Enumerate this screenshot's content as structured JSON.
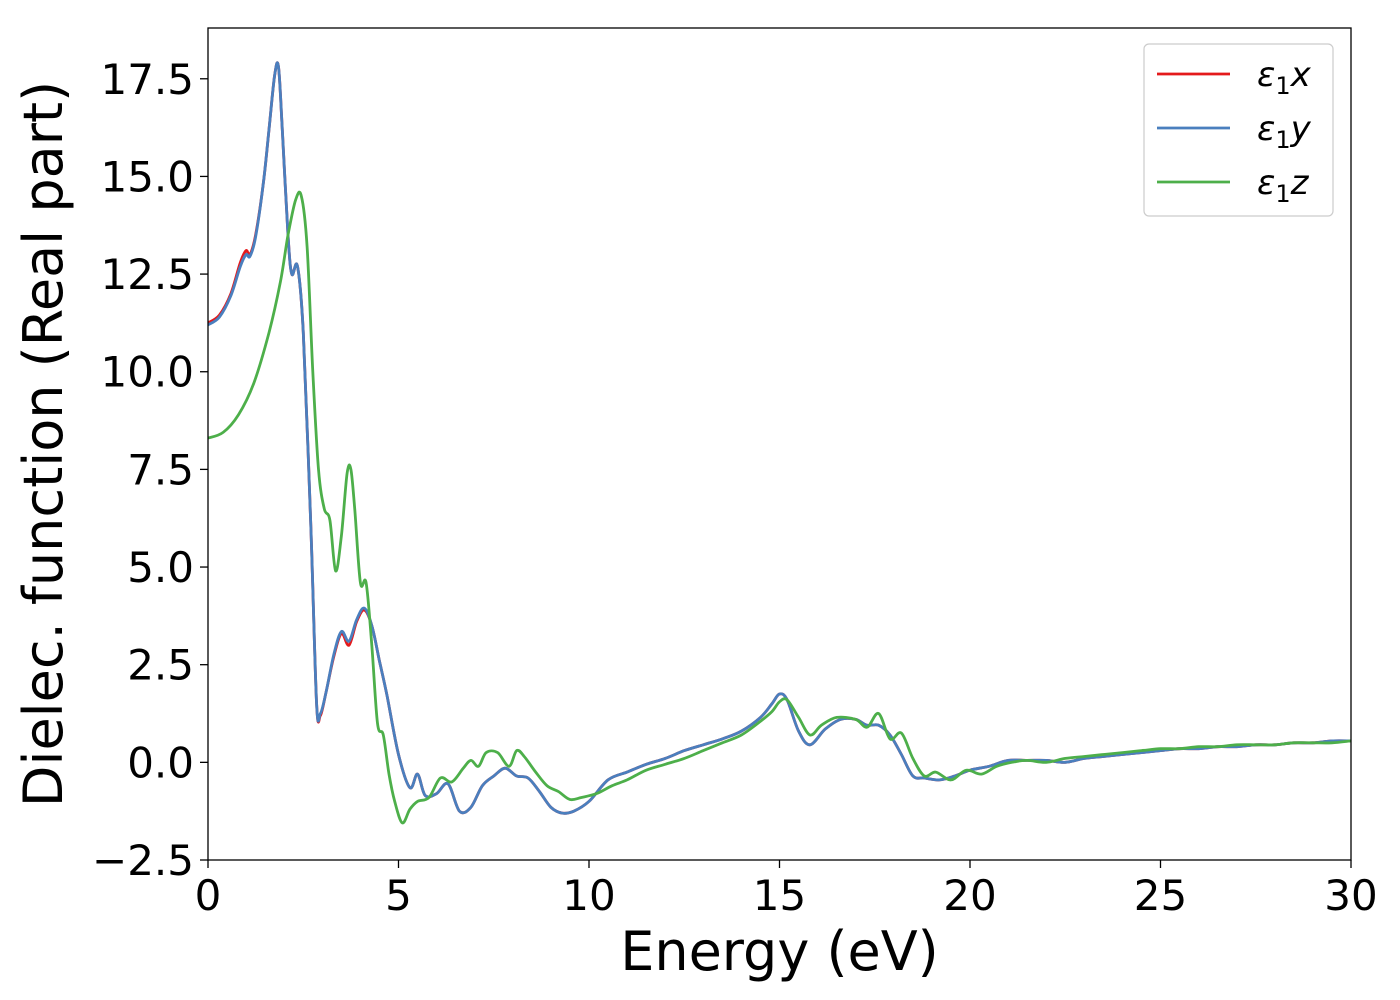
{
  "chart_data": {
    "type": "line",
    "xlabel": "Energy (eV)",
    "ylabel": "Dielec. function (Real part)",
    "xlim": [
      0,
      30
    ],
    "ylim": [
      -2.5,
      18.8
    ],
    "xticks": [
      0,
      5,
      10,
      15,
      20,
      25,
      30
    ],
    "xtick_labels": [
      "0",
      "5",
      "10",
      "15",
      "20",
      "25",
      "30"
    ],
    "yticks": [
      -2.5,
      0.0,
      2.5,
      5.0,
      7.5,
      10.0,
      12.5,
      15.0,
      17.5
    ],
    "ytick_labels": [
      "−2.5",
      "0.0",
      "2.5",
      "5.0",
      "7.5",
      "10.0",
      "12.5",
      "15.0",
      "17.5"
    ],
    "grid": false,
    "legend_position": "top-right",
    "series": [
      {
        "name": "ε1x",
        "legend_base": "ε",
        "legend_sub": "1",
        "legend_var": "x",
        "color": "#e41a1c",
        "x": [
          0,
          0.3,
          0.6,
          0.85,
          1.0,
          1.1,
          1.25,
          1.45,
          1.6,
          1.75,
          1.85,
          1.95,
          2.1,
          2.2,
          2.35,
          2.5,
          2.7,
          2.85,
          2.95,
          3.1,
          3.3,
          3.5,
          3.7,
          3.9,
          4.1,
          4.3,
          4.5,
          4.7,
          5.0,
          5.3,
          5.5,
          5.7,
          6.0,
          6.3,
          6.6,
          6.9,
          7.2,
          7.5,
          7.8,
          8.1,
          8.4,
          8.7,
          9.0,
          9.3,
          9.6,
          10.0,
          10.5,
          11.0,
          11.5,
          12.0,
          12.5,
          13.0,
          13.5,
          14.0,
          14.5,
          14.8,
          15.0,
          15.2,
          15.5,
          15.8,
          16.2,
          16.6,
          17.0,
          17.3,
          17.6,
          17.9,
          18.2,
          18.5,
          18.8,
          19.2,
          19.6,
          20.0,
          20.5,
          21.0,
          21.5,
          22.0,
          22.5,
          23.0,
          23.5,
          24.0,
          24.5,
          25.0,
          25.5,
          26.0,
          26.5,
          27.0,
          27.5,
          28.0,
          28.5,
          29.0,
          29.5,
          30.0
        ],
        "y": [
          11.25,
          11.45,
          12.0,
          12.8,
          13.1,
          13.0,
          13.5,
          14.8,
          16.2,
          17.6,
          17.8,
          16.2,
          13.5,
          12.5,
          12.7,
          11.0,
          6.0,
          1.5,
          1.2,
          1.8,
          2.7,
          3.3,
          3.0,
          3.6,
          3.9,
          3.5,
          2.6,
          1.7,
          0.2,
          -0.65,
          -0.3,
          -0.85,
          -0.8,
          -0.55,
          -1.25,
          -1.15,
          -0.6,
          -0.35,
          -0.15,
          -0.35,
          -0.4,
          -0.75,
          -1.15,
          -1.3,
          -1.25,
          -1.0,
          -0.45,
          -0.25,
          -0.05,
          0.1,
          0.3,
          0.45,
          0.6,
          0.8,
          1.15,
          1.5,
          1.75,
          1.6,
          0.8,
          0.45,
          0.85,
          1.1,
          1.1,
          0.95,
          0.95,
          0.7,
          0.2,
          -0.35,
          -0.4,
          -0.45,
          -0.35,
          -0.2,
          -0.1,
          0.05,
          0.05,
          0.05,
          0.0,
          0.1,
          0.15,
          0.2,
          0.25,
          0.3,
          0.35,
          0.35,
          0.4,
          0.4,
          0.45,
          0.45,
          0.5,
          0.5,
          0.55,
          0.55
        ]
      },
      {
        "name": "ε1y",
        "legend_base": "ε",
        "legend_sub": "1",
        "legend_var": "y",
        "color": "#4a7fbe",
        "x": [
          0,
          0.3,
          0.6,
          0.85,
          1.0,
          1.1,
          1.25,
          1.45,
          1.6,
          1.75,
          1.85,
          1.95,
          2.1,
          2.2,
          2.35,
          2.5,
          2.7,
          2.85,
          2.95,
          3.1,
          3.3,
          3.5,
          3.7,
          3.9,
          4.1,
          4.3,
          4.5,
          4.7,
          5.0,
          5.3,
          5.5,
          5.7,
          6.0,
          6.3,
          6.6,
          6.9,
          7.2,
          7.5,
          7.8,
          8.1,
          8.4,
          8.7,
          9.0,
          9.3,
          9.6,
          10.0,
          10.5,
          11.0,
          11.5,
          12.0,
          12.5,
          13.0,
          13.5,
          14.0,
          14.5,
          14.8,
          15.0,
          15.2,
          15.5,
          15.8,
          16.2,
          16.6,
          17.0,
          17.3,
          17.6,
          17.9,
          18.2,
          18.5,
          18.8,
          19.2,
          19.6,
          20.0,
          20.5,
          21.0,
          21.5,
          22.0,
          22.5,
          23.0,
          23.5,
          24.0,
          24.5,
          25.0,
          25.5,
          26.0,
          26.5,
          27.0,
          27.5,
          28.0,
          28.5,
          29.0,
          29.5,
          30.0
        ],
        "y": [
          11.2,
          11.4,
          11.95,
          12.7,
          13.0,
          12.95,
          13.45,
          14.8,
          16.2,
          17.6,
          17.8,
          16.2,
          13.5,
          12.5,
          12.7,
          11.0,
          6.0,
          1.5,
          1.25,
          1.8,
          2.75,
          3.35,
          3.1,
          3.65,
          3.95,
          3.5,
          2.6,
          1.7,
          0.2,
          -0.65,
          -0.3,
          -0.85,
          -0.8,
          -0.55,
          -1.25,
          -1.15,
          -0.6,
          -0.35,
          -0.15,
          -0.35,
          -0.4,
          -0.75,
          -1.15,
          -1.3,
          -1.25,
          -1.0,
          -0.45,
          -0.25,
          -0.05,
          0.1,
          0.3,
          0.45,
          0.6,
          0.8,
          1.15,
          1.5,
          1.75,
          1.6,
          0.8,
          0.45,
          0.85,
          1.1,
          1.1,
          0.95,
          0.95,
          0.7,
          0.2,
          -0.35,
          -0.4,
          -0.45,
          -0.35,
          -0.2,
          -0.1,
          0.05,
          0.05,
          0.05,
          0.0,
          0.1,
          0.15,
          0.2,
          0.25,
          0.3,
          0.35,
          0.35,
          0.4,
          0.4,
          0.45,
          0.45,
          0.5,
          0.5,
          0.55,
          0.55
        ]
      },
      {
        "name": "ε1z",
        "legend_base": "ε",
        "legend_sub": "1",
        "legend_var": "z",
        "color": "#4daf4a",
        "x": [
          0,
          0.4,
          0.8,
          1.2,
          1.6,
          1.9,
          2.1,
          2.3,
          2.45,
          2.6,
          2.75,
          2.9,
          3.05,
          3.2,
          3.35,
          3.5,
          3.65,
          3.75,
          3.85,
          4.0,
          4.15,
          4.3,
          4.45,
          4.6,
          4.75,
          4.9,
          5.1,
          5.3,
          5.5,
          5.8,
          6.1,
          6.4,
          6.7,
          6.9,
          7.1,
          7.3,
          7.6,
          7.9,
          8.1,
          8.3,
          8.6,
          8.9,
          9.2,
          9.5,
          9.8,
          10.2,
          10.6,
          11.0,
          11.5,
          12.0,
          12.5,
          13.0,
          13.5,
          14.0,
          14.5,
          14.8,
          15.0,
          15.2,
          15.5,
          15.8,
          16.1,
          16.5,
          17.0,
          17.3,
          17.6,
          17.9,
          18.2,
          18.5,
          18.8,
          19.1,
          19.5,
          19.9,
          20.3,
          20.7,
          21.1,
          21.5,
          22.0,
          22.5,
          23.0,
          23.5,
          24.0,
          24.5,
          25.0,
          25.5,
          26.0,
          26.5,
          27.0,
          27.5,
          28.0,
          28.5,
          29.0,
          29.5,
          30.0
        ],
        "y": [
          8.3,
          8.45,
          8.9,
          9.7,
          11.0,
          12.3,
          13.5,
          14.4,
          14.5,
          13.2,
          10.0,
          7.5,
          6.5,
          6.2,
          4.9,
          5.8,
          7.4,
          7.5,
          6.5,
          4.6,
          4.6,
          3.0,
          1.0,
          0.7,
          -0.3,
          -1.0,
          -1.55,
          -1.2,
          -1.0,
          -0.9,
          -0.4,
          -0.5,
          -0.15,
          0.05,
          -0.1,
          0.25,
          0.25,
          -0.1,
          0.3,
          0.15,
          -0.25,
          -0.6,
          -0.75,
          -0.95,
          -0.9,
          -0.8,
          -0.6,
          -0.45,
          -0.2,
          -0.05,
          0.1,
          0.3,
          0.5,
          0.7,
          1.05,
          1.3,
          1.55,
          1.6,
          1.15,
          0.7,
          0.95,
          1.15,
          1.1,
          0.9,
          1.25,
          0.6,
          0.75,
          0.1,
          -0.35,
          -0.25,
          -0.45,
          -0.2,
          -0.3,
          -0.1,
          0.0,
          0.05,
          0.0,
          0.1,
          0.15,
          0.2,
          0.25,
          0.3,
          0.35,
          0.35,
          0.4,
          0.4,
          0.45,
          0.45,
          0.45,
          0.5,
          0.5,
          0.5,
          0.55
        ]
      }
    ]
  }
}
